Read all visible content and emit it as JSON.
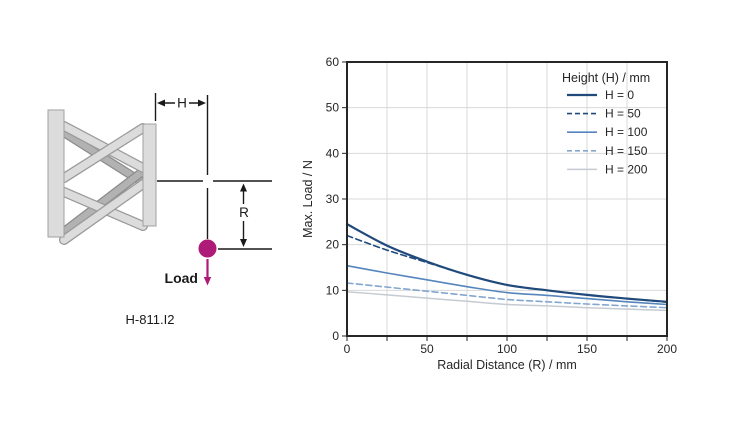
{
  "background": "#ffffff",
  "diagram": {
    "product_label": "H-811.I2",
    "load_label": "Load",
    "h_dim_label": "H",
    "r_dim_label": "R",
    "load_color": "#AD1A77",
    "line_color": "#1a1a1a",
    "plate_fill": "#DCDCDC",
    "strut_light": "#DCDCDC",
    "strut_dark": "#B2B2B2"
  },
  "chart_data": {
    "type": "line",
    "title": "",
    "xlabel": "Radial Distance (R) / mm",
    "ylabel": "Max. Load / N",
    "xlim": [
      0,
      200
    ],
    "ylim": [
      0,
      60
    ],
    "x_major_ticks": [
      0,
      50,
      100,
      150,
      200
    ],
    "x_minor_step": 25,
    "y_ticks": [
      0,
      10,
      20,
      30,
      40,
      50,
      60
    ],
    "grid": true,
    "grid_color": "#D9D9D9",
    "axis_color": "#262626",
    "text_color": "#262626",
    "legend_title": "Height (H) / mm",
    "legend_position": "top-right",
    "x": [
      0,
      25,
      50,
      75,
      100,
      125,
      150,
      175,
      200
    ],
    "series": [
      {
        "name": "H = 0",
        "style": "solid",
        "color": "#204A7B",
        "width": 2.2,
        "values": [
          24.5,
          19.8,
          16.3,
          13.4,
          11.2,
          10.0,
          9.0,
          8.2,
          7.5
        ]
      },
      {
        "name": "H = 50",
        "style": "dashed",
        "color": "#204A7B",
        "width": 1.6,
        "values": [
          22.0,
          18.8,
          16.1,
          13.4,
          11.2,
          10.0,
          9.0,
          8.2,
          7.4
        ]
      },
      {
        "name": "H = 100",
        "style": "solid",
        "color": "#5585BC",
        "width": 1.6,
        "values": [
          15.4,
          13.8,
          12.3,
          10.8,
          9.5,
          8.9,
          8.2,
          7.5,
          6.9
        ]
      },
      {
        "name": "H = 150",
        "style": "dashed",
        "color": "#84A7CF",
        "width": 1.6,
        "values": [
          11.6,
          10.7,
          9.8,
          8.9,
          8.0,
          7.5,
          7.0,
          6.6,
          6.2
        ]
      },
      {
        "name": "H = 200",
        "style": "solid",
        "color": "#C6CAD2",
        "width": 1.5,
        "values": [
          9.7,
          9.0,
          8.3,
          7.6,
          6.9,
          6.6,
          6.2,
          5.9,
          5.6
        ]
      }
    ]
  }
}
